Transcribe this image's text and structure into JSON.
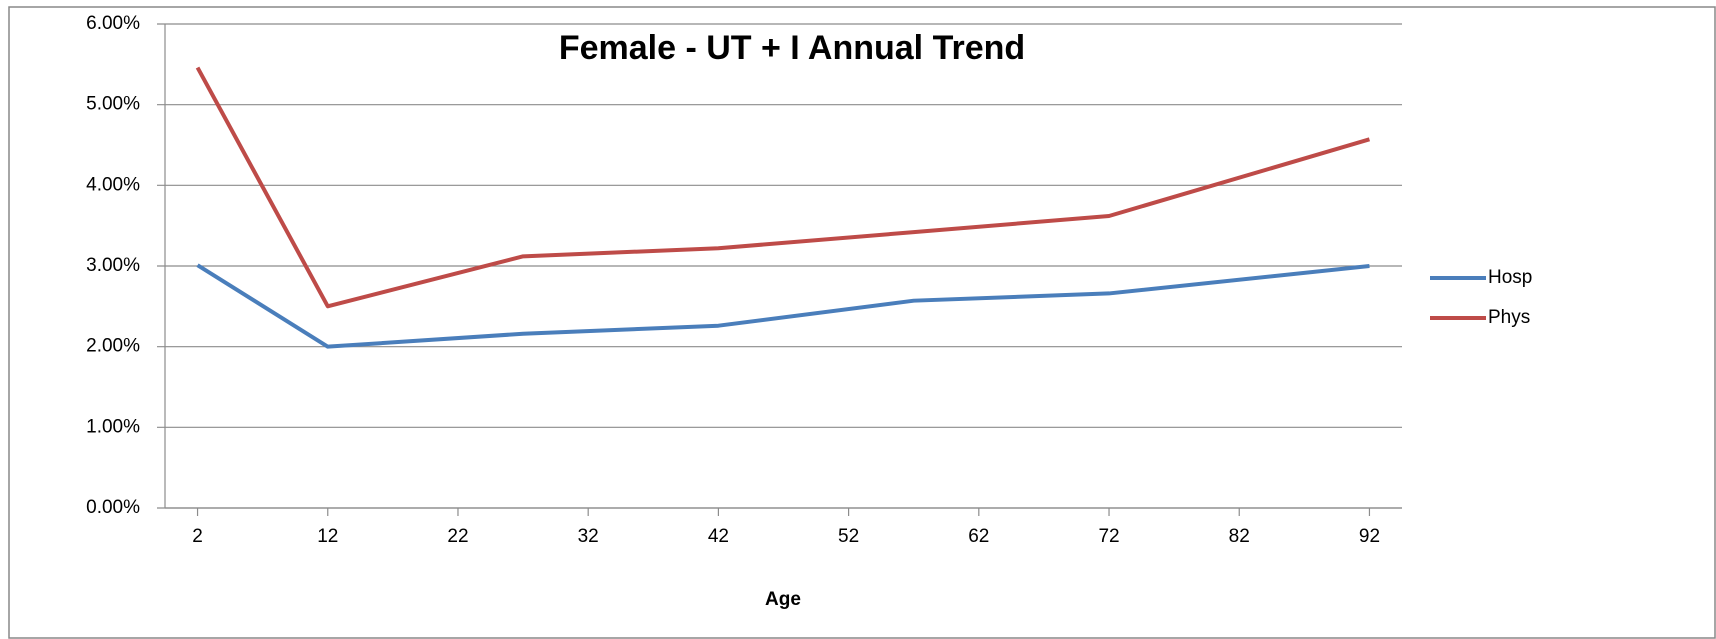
{
  "chart_data": {
    "type": "line",
    "title": "Female  -  UT + I Annual Trend",
    "x_label": "Age",
    "x": [
      2,
      12,
      27,
      42,
      57,
      72,
      92
    ],
    "xlim": [
      -0.5,
      94.5
    ],
    "xticks": [
      2,
      12,
      22,
      32,
      42,
      52,
      62,
      72,
      82,
      92
    ],
    "ylim": [
      0,
      6
    ],
    "yticks": [
      {
        "value": 0,
        "label": "0.00%"
      },
      {
        "value": 1,
        "label": "1.00%"
      },
      {
        "value": 2,
        "label": "2.00%"
      },
      {
        "value": 3,
        "label": "3.00%"
      },
      {
        "value": 4,
        "label": "4.00%"
      },
      {
        "value": 5,
        "label": "5.00%"
      },
      {
        "value": 6,
        "label": "6.00%"
      }
    ],
    "grid": true,
    "legend": "right",
    "series": [
      {
        "name": "Hosp",
        "color": "#4a7ebb",
        "values": [
          3.01,
          2.0,
          2.16,
          2.26,
          2.57,
          2.66,
          3.0
        ]
      },
      {
        "name": "Phys",
        "color": "#be4b48",
        "values": [
          5.46,
          2.5,
          3.12,
          3.22,
          3.42,
          3.62,
          4.57
        ]
      }
    ]
  }
}
